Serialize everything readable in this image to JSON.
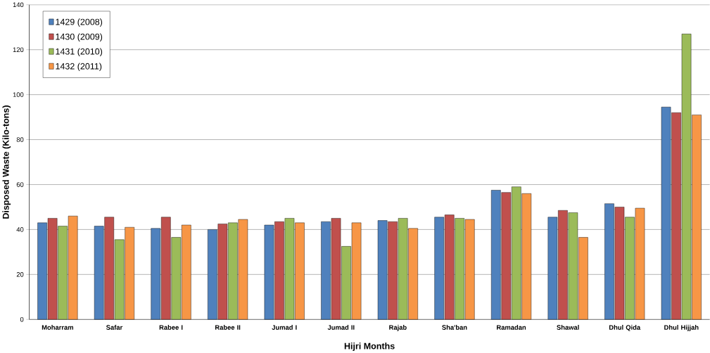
{
  "chart_data": {
    "type": "bar",
    "xlabel": "Hijri Months",
    "ylabel": "Disposed Waste (Kilo-tons)",
    "categories": [
      "Moharram",
      "Safar",
      "Rabee I",
      "Rabee II",
      "Jumad I",
      "Jumad II",
      "Rajab",
      "Sha'ban",
      "Ramadan",
      "Shawal",
      "Dhul Qida",
      "Dhul Hijjah"
    ],
    "series": [
      {
        "name": "1429 (2008)",
        "color": "#4f81bd",
        "values": [
          43,
          41.5,
          40.5,
          40,
          42,
          43.5,
          44,
          45.5,
          57.5,
          45.5,
          51.5,
          94.5
        ]
      },
      {
        "name": "1430 (2009)",
        "color": "#c0504d",
        "values": [
          45,
          45.5,
          45.5,
          42.5,
          43.5,
          45,
          43.5,
          46.5,
          56.5,
          48.5,
          50,
          92
        ]
      },
      {
        "name": "1431 (2010)",
        "color": "#9bbb59",
        "values": [
          41.5,
          35.5,
          36.5,
          43,
          45,
          32.5,
          45,
          45,
          59,
          47.5,
          45.5,
          127
        ]
      },
      {
        "name": "1432 (2011)",
        "color": "#f79646",
        "values": [
          46,
          41,
          42,
          44.5,
          43,
          43,
          40.5,
          44.5,
          56,
          36.5,
          49.5,
          91
        ]
      }
    ],
    "ylim": [
      0,
      140
    ],
    "yticks": [
      0,
      20,
      40,
      60,
      80,
      100,
      120,
      140
    ],
    "grid": "y",
    "legend": "top left"
  }
}
